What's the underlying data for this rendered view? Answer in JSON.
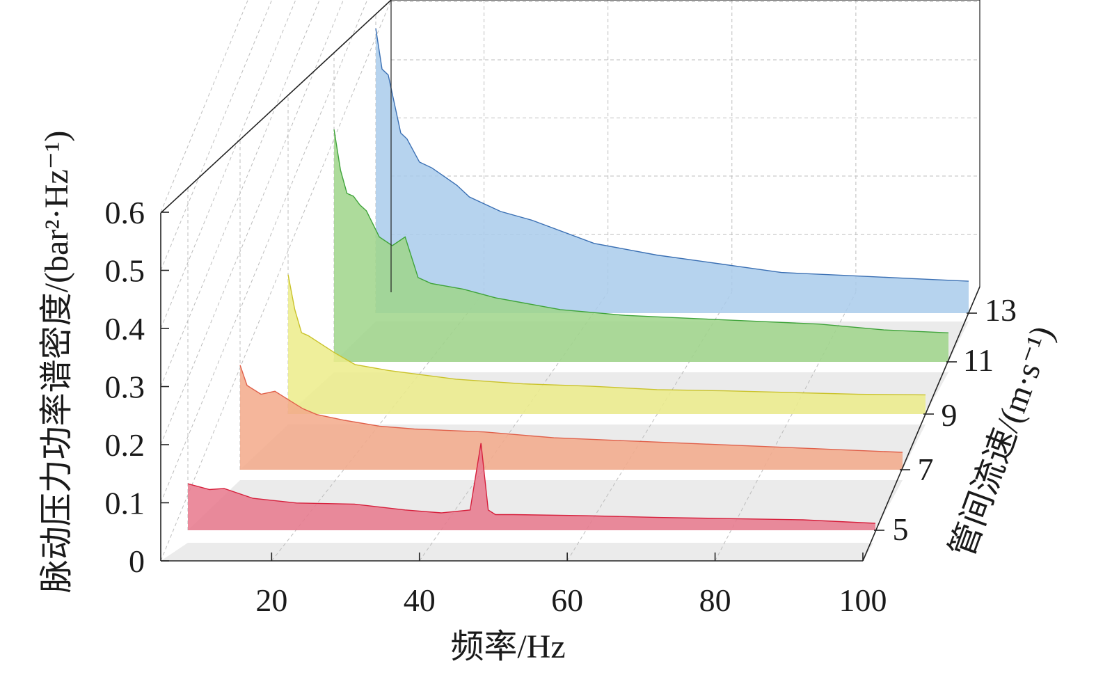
{
  "chart_data": {
    "type": "area",
    "title": "",
    "xlabel": "频率/Hz",
    "ylabel": "脉动压力功率谱密度/(bar²·Hz⁻¹)",
    "zlabel": "管间流速/(m·s⁻¹)",
    "xlim": [
      5,
      100
    ],
    "ylim": [
      0,
      0.6
    ],
    "x_ticks": [
      "20",
      "40",
      "60",
      "80",
      "100"
    ],
    "y_ticks": [
      "0",
      "0.1",
      "0.2",
      "0.3",
      "0.4",
      "0.5",
      "0.6"
    ],
    "z_ticks": [
      "5",
      "7",
      "9",
      "11",
      "13"
    ],
    "grid": true,
    "series": [
      {
        "name": "5",
        "color": "#e8788c",
        "x": [
          5,
          8,
          10,
          14,
          20,
          28,
          35,
          40,
          44,
          45.5,
          46.5,
          47.5,
          50,
          60,
          70,
          80,
          90,
          100
        ],
        "values": [
          0.08,
          0.07,
          0.072,
          0.055,
          0.047,
          0.045,
          0.035,
          0.03,
          0.035,
          0.15,
          0.035,
          0.027,
          0.027,
          0.025,
          0.022,
          0.02,
          0.018,
          0.012
        ]
      },
      {
        "name": "7",
        "color": "#f3a98a",
        "x": [
          5,
          6,
          8,
          10,
          12,
          14,
          16,
          20,
          25,
          30,
          40,
          50,
          60,
          70,
          80,
          90,
          100
        ],
        "values": [
          0.18,
          0.145,
          0.13,
          0.135,
          0.12,
          0.105,
          0.095,
          0.085,
          0.075,
          0.07,
          0.065,
          0.055,
          0.05,
          0.045,
          0.04,
          0.035,
          0.03
        ]
      },
      {
        "name": "9",
        "color": "#ecec8a",
        "x": [
          5,
          6,
          7,
          8,
          10,
          12,
          15,
          20,
          30,
          40,
          50,
          60,
          70,
          80,
          90,
          100
        ],
        "values": [
          0.24,
          0.18,
          0.14,
          0.135,
          0.12,
          0.105,
          0.085,
          0.075,
          0.06,
          0.052,
          0.048,
          0.042,
          0.04,
          0.037,
          0.034,
          0.033
        ]
      },
      {
        "name": "11",
        "color": "#9fd58a",
        "x": [
          5,
          6,
          7,
          8,
          9,
          10,
          12,
          14,
          16,
          18,
          20,
          25,
          30,
          40,
          50,
          60,
          70,
          80,
          90,
          100
        ],
        "values": [
          0.4,
          0.33,
          0.29,
          0.285,
          0.27,
          0.26,
          0.215,
          0.2,
          0.215,
          0.145,
          0.135,
          0.125,
          0.11,
          0.09,
          0.08,
          0.075,
          0.07,
          0.065,
          0.055,
          0.05
        ]
      },
      {
        "name": "13",
        "color": "#a9cbeb",
        "x": [
          5,
          6,
          7,
          8,
          9,
          10,
          12,
          14,
          16,
          18,
          20,
          25,
          30,
          40,
          50,
          60,
          70,
          80,
          90,
          100
        ],
        "values": [
          0.49,
          0.42,
          0.41,
          0.36,
          0.31,
          0.3,
          0.26,
          0.25,
          0.235,
          0.22,
          0.2,
          0.175,
          0.16,
          0.12,
          0.1,
          0.085,
          0.07,
          0.065,
          0.06,
          0.055
        ]
      }
    ]
  }
}
